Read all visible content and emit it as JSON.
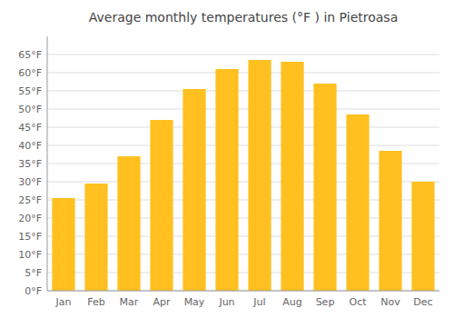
{
  "chart_data": {
    "type": "bar",
    "title": "Average monthly temperatures (°F ) in Pietroasa",
    "categories": [
      "Jan",
      "Feb",
      "Mar",
      "Apr",
      "May",
      "Jun",
      "Jul",
      "Aug",
      "Sep",
      "Oct",
      "Nov",
      "Dec"
    ],
    "values": [
      25.5,
      29.5,
      37.0,
      47.0,
      55.5,
      61.0,
      63.5,
      63.0,
      57.0,
      48.5,
      38.5,
      30.0
    ],
    "color": "#FFC020",
    "ylim": [
      0,
      70
    ],
    "yticks": [
      {
        "value": 0,
        "label": "0°F"
      },
      {
        "value": 5,
        "label": "5°F"
      },
      {
        "value": 10,
        "label": "10°F"
      },
      {
        "value": 15,
        "label": "15°F"
      },
      {
        "value": 20,
        "label": "20°F"
      },
      {
        "value": 25,
        "label": "25°F"
      },
      {
        "value": 30,
        "label": "30°F"
      },
      {
        "value": 35,
        "label": "35°F"
      },
      {
        "value": 40,
        "label": "40°F"
      },
      {
        "value": 45,
        "label": "45°F"
      },
      {
        "value": 50,
        "label": "50°F"
      },
      {
        "value": 55,
        "label": "55°F"
      },
      {
        "value": 60,
        "label": "60°F"
      },
      {
        "value": 65,
        "label": "65°F"
      }
    ],
    "grid": true
  }
}
